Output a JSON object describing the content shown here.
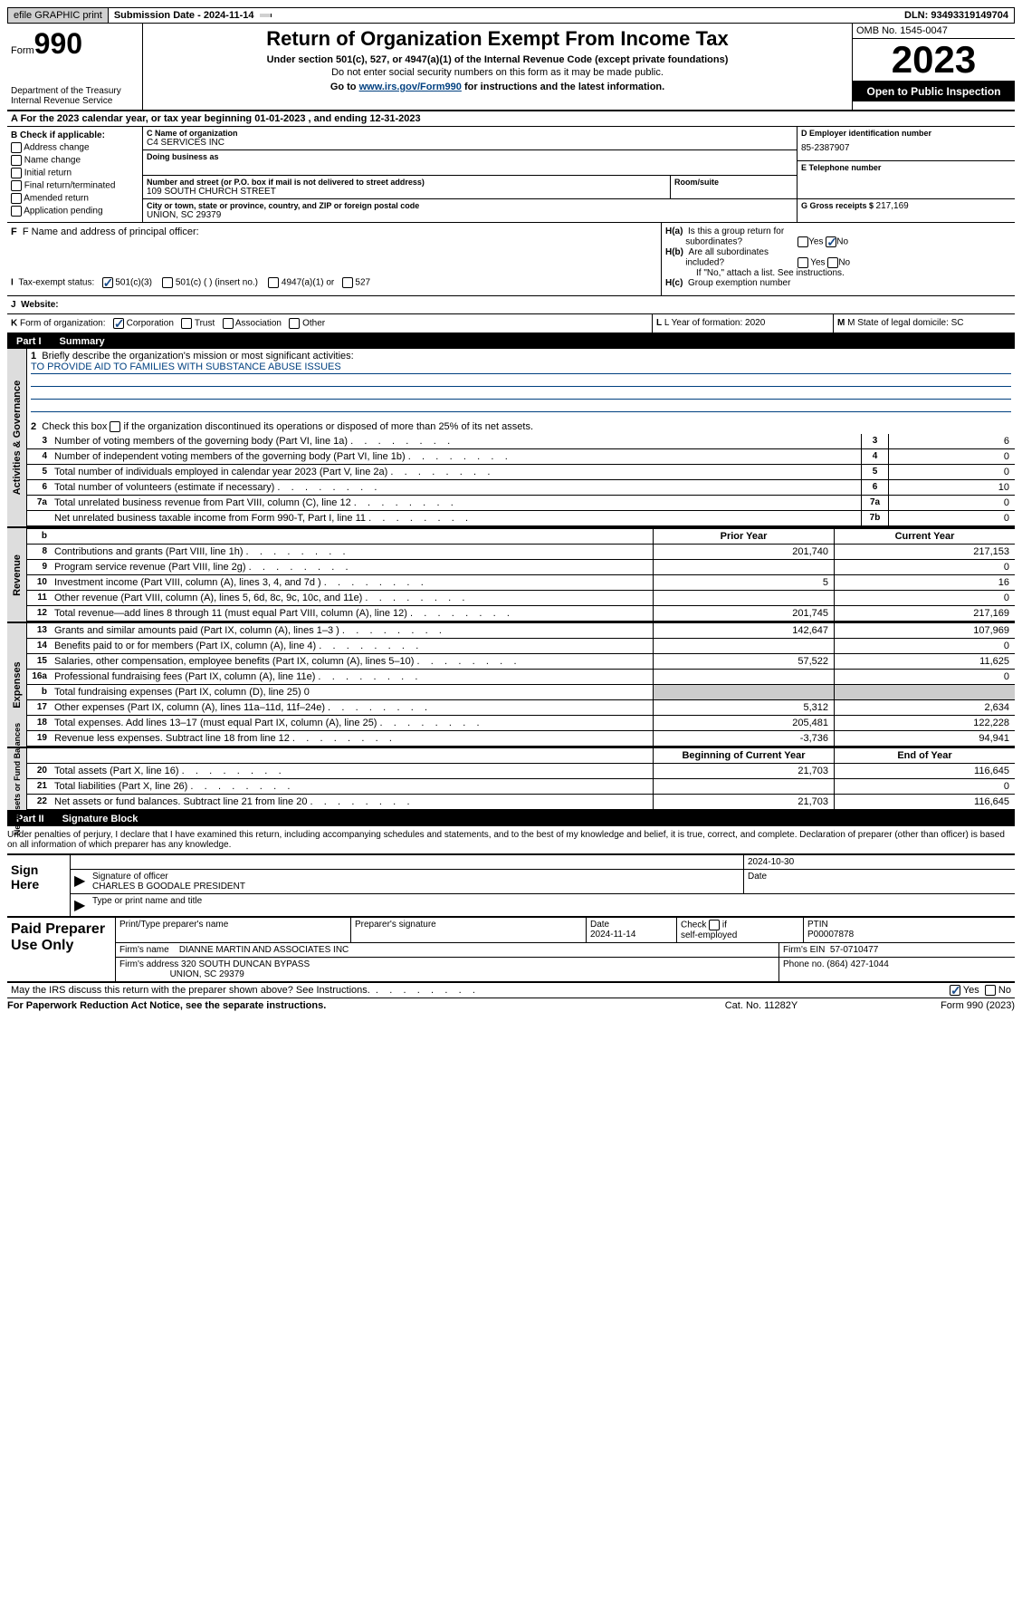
{
  "topbar": {
    "efile": "efile GRAPHIC print",
    "submission": "Submission Date - 2024-11-14",
    "dln": "DLN: 93493319149704"
  },
  "header": {
    "form_label": "Form",
    "form_no": "990",
    "dept": "Department of the Treasury\nInternal Revenue Service",
    "title": "Return of Organization Exempt From Income Tax",
    "sub1": "Under section 501(c), 527, or 4947(a)(1) of the Internal Revenue Code (except private foundations)",
    "sub2": "Do not enter social security numbers on this form as it may be made public.",
    "sub3_pre": "Go to ",
    "sub3_link": "www.irs.gov/Form990",
    "sub3_post": " for instructions and the latest information.",
    "omb": "OMB No. 1545-0047",
    "year": "2023",
    "inspect": "Open to Public Inspection"
  },
  "lineA": "A  For the 2023 calendar year, or tax year beginning 01-01-2023    , and ending 12-31-2023",
  "colB": {
    "label": "B Check if applicable:",
    "items": [
      "Address change",
      "Name change",
      "Initial return",
      "Final return/terminated",
      "Amended return",
      "Application pending"
    ]
  },
  "colC": {
    "name_lbl": "C Name of organization",
    "name": "C4 SERVICES INC",
    "dba_lbl": "Doing business as",
    "street_lbl": "Number and street (or P.O. box if mail is not delivered to street address)",
    "street": "109 SOUTH CHURCH STREET",
    "room_lbl": "Room/suite",
    "city_lbl": "City or town, state or province, country, and ZIP or foreign postal code",
    "city": "UNION, SC  29379"
  },
  "colD": {
    "ein_lbl": "D Employer identification number",
    "ein": "85-2387907",
    "phone_lbl": "E Telephone number",
    "gross_lbl": "G Gross receipts $ ",
    "gross": "217,169"
  },
  "rowF": {
    "f_lbl": "F  Name and address of principal officer:",
    "ha_lbl": "H(a)  Is this a group return for subordinates?",
    "hb_lbl": "H(b)  Are all subordinates included?",
    "hb_note": "If \"No,\" attach a list. See instructions.",
    "hc_lbl": "H(c)  Group exemption number"
  },
  "rowI": {
    "label": "I  Tax-exempt status:",
    "opts": [
      "501(c)(3)",
      "501(c) (  ) (insert no.)",
      "4947(a)(1) or",
      "527"
    ]
  },
  "rowJ": {
    "label": "J  Website:"
  },
  "rowK": {
    "label": "K Form of organization:",
    "opts": [
      "Corporation",
      "Trust",
      "Association",
      "Other"
    ],
    "l_lbl": "L Year of formation: ",
    "l_val": "2020",
    "m_lbl": "M State of legal domicile: ",
    "m_val": "SC"
  },
  "part1": {
    "num": "Part I",
    "title": "Summary"
  },
  "gov": {
    "vtab": "Activities & Governance",
    "l1": "Briefly describe the organization's mission or most significant activities:",
    "mission": "TO PROVIDE AID TO FAMILIES WITH SUBSTANCE ABUSE ISSUES",
    "l2": "Check this box      if the organization discontinued its operations or disposed of more than 25% of its net assets.",
    "rows": [
      {
        "n": "3",
        "d": "Number of voting members of the governing body (Part VI, line 1a)",
        "b": "3",
        "v": "6"
      },
      {
        "n": "4",
        "d": "Number of independent voting members of the governing body (Part VI, line 1b)",
        "b": "4",
        "v": "0"
      },
      {
        "n": "5",
        "d": "Total number of individuals employed in calendar year 2023 (Part V, line 2a)",
        "b": "5",
        "v": "0"
      },
      {
        "n": "6",
        "d": "Total number of volunteers (estimate if necessary)",
        "b": "6",
        "v": "10"
      },
      {
        "n": "7a",
        "d": "Total unrelated business revenue from Part VIII, column (C), line 12",
        "b": "7a",
        "v": "0"
      },
      {
        "n": "",
        "d": "Net unrelated business taxable income from Form 990-T, Part I, line 11",
        "b": "7b",
        "v": "0"
      }
    ]
  },
  "rev": {
    "vtab": "Revenue",
    "hdr_prior": "Prior Year",
    "hdr_curr": "Current Year",
    "rows": [
      {
        "n": "8",
        "d": "Contributions and grants (Part VIII, line 1h)",
        "p": "201,740",
        "c": "217,153"
      },
      {
        "n": "9",
        "d": "Program service revenue (Part VIII, line 2g)",
        "p": "",
        "c": "0"
      },
      {
        "n": "10",
        "d": "Investment income (Part VIII, column (A), lines 3, 4, and 7d )",
        "p": "5",
        "c": "16"
      },
      {
        "n": "11",
        "d": "Other revenue (Part VIII, column (A), lines 5, 6d, 8c, 9c, 10c, and 11e)",
        "p": "",
        "c": "0"
      },
      {
        "n": "12",
        "d": "Total revenue—add lines 8 through 11 (must equal Part VIII, column (A), line 12)",
        "p": "201,745",
        "c": "217,169"
      }
    ]
  },
  "exp": {
    "vtab": "Expenses",
    "rows": [
      {
        "n": "13",
        "d": "Grants and similar amounts paid (Part IX, column (A), lines 1–3 )",
        "p": "142,647",
        "c": "107,969"
      },
      {
        "n": "14",
        "d": "Benefits paid to or for members (Part IX, column (A), line 4)",
        "p": "",
        "c": "0"
      },
      {
        "n": "15",
        "d": "Salaries, other compensation, employee benefits (Part IX, column (A), lines 5–10)",
        "p": "57,522",
        "c": "11,625"
      },
      {
        "n": "16a",
        "d": "Professional fundraising fees (Part IX, column (A), line 11e)",
        "p": "",
        "c": "0"
      },
      {
        "n": "b",
        "d": "Total fundraising expenses (Part IX, column (D), line 25) 0",
        "p": "shade",
        "c": "shade"
      },
      {
        "n": "17",
        "d": "Other expenses (Part IX, column (A), lines 11a–11d, 11f–24e)",
        "p": "5,312",
        "c": "2,634"
      },
      {
        "n": "18",
        "d": "Total expenses. Add lines 13–17 (must equal Part IX, column (A), line 25)",
        "p": "205,481",
        "c": "122,228"
      },
      {
        "n": "19",
        "d": "Revenue less expenses. Subtract line 18 from line 12",
        "p": "-3,736",
        "c": "94,941"
      }
    ]
  },
  "net": {
    "vtab": "Net Assets or Fund Balances",
    "hdr_beg": "Beginning of Current Year",
    "hdr_end": "End of Year",
    "rows": [
      {
        "n": "20",
        "d": "Total assets (Part X, line 16)",
        "p": "21,703",
        "c": "116,645"
      },
      {
        "n": "21",
        "d": "Total liabilities (Part X, line 26)",
        "p": "",
        "c": "0"
      },
      {
        "n": "22",
        "d": "Net assets or fund balances. Subtract line 21 from line 20",
        "p": "21,703",
        "c": "116,645"
      }
    ]
  },
  "part2": {
    "num": "Part II",
    "title": "Signature Block"
  },
  "perjury": "Under penalties of perjury, I declare that I have examined this return, including accompanying schedules and statements, and to the best of my knowledge and belief, it is true, correct, and complete. Declaration of preparer (other than officer) is based on all information of which preparer has any knowledge.",
  "sign": {
    "left": "Sign Here",
    "sig_lbl": "Signature of officer",
    "date_lbl": "Date",
    "date": "2024-10-30",
    "name": "CHARLES B GOODALE PRESIDENT",
    "name_lbl": "Type or print name and title"
  },
  "prep": {
    "left": "Paid Preparer Use Only",
    "r1": {
      "c1": "Print/Type preparer's name",
      "c2": "Preparer's signature",
      "c3": "Date",
      "c3v": "2024-11-14",
      "c4": "Check      if self-employed",
      "c5": "PTIN",
      "c5v": "P00007878"
    },
    "r2": {
      "c1": "Firm's name",
      "c1v": "DIANNE MARTIN AND ASSOCIATES INC",
      "c2": "Firm's EIN",
      "c2v": "57-0710477"
    },
    "r3": {
      "c1": "Firm's address",
      "c1v": "320 SOUTH DUNCAN BYPASS",
      "c1v2": "UNION, SC  29379",
      "c2": "Phone no.",
      "c2v": "(864) 427-1044"
    }
  },
  "discuss": "May the IRS discuss this return with the preparer shown above? See Instructions.",
  "foot": {
    "l": "For Paperwork Reduction Act Notice, see the separate instructions.",
    "m": "Cat. No. 11282Y",
    "r": "Form 990 (2023)"
  }
}
